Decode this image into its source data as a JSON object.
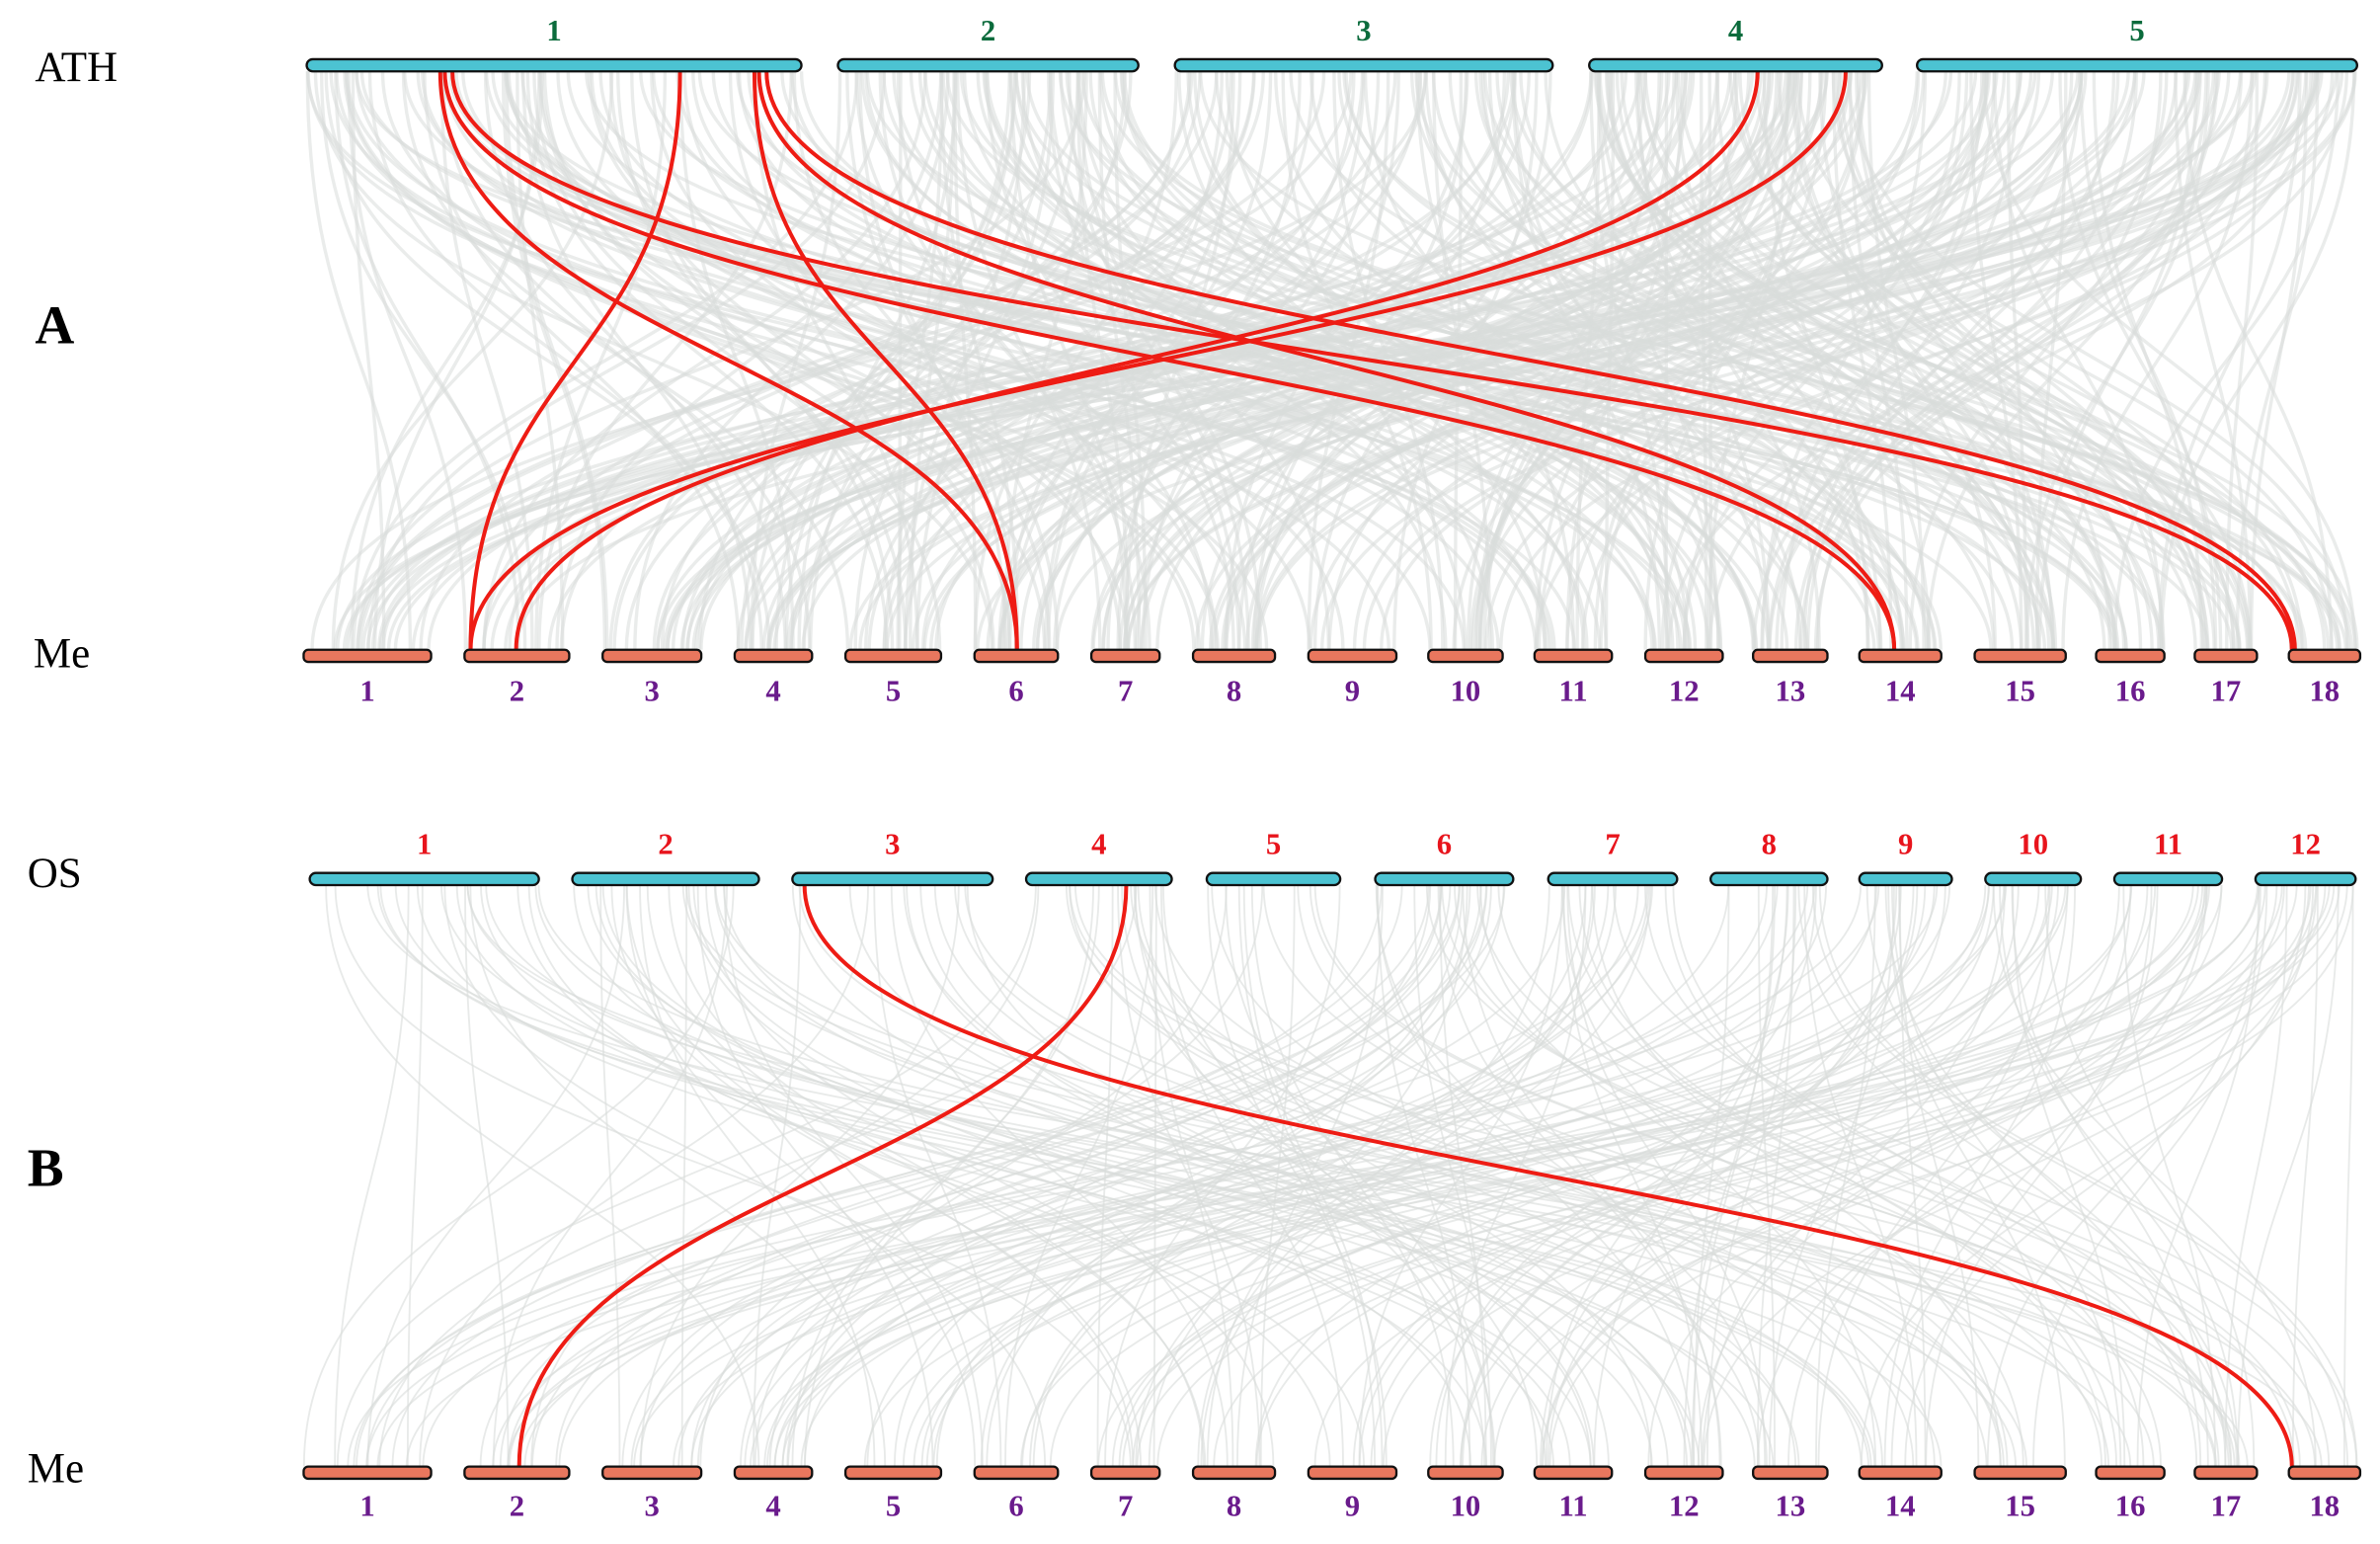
{
  "panels": [
    {
      "label": "A",
      "top": {
        "species": "ATH",
        "chromosomes": [
          "1",
          "2",
          "3",
          "4",
          "5"
        ]
      },
      "bottom": {
        "species": "Me",
        "chromosomes": [
          "1",
          "2",
          "3",
          "4",
          "5",
          "6",
          "7",
          "8",
          "9",
          "10",
          "11",
          "12",
          "13",
          "14",
          "15",
          "16",
          "17",
          "18"
        ]
      }
    },
    {
      "label": "B",
      "top": {
        "species": "OS",
        "chromosomes": [
          "1",
          "2",
          "3",
          "4",
          "5",
          "6",
          "7",
          "8",
          "9",
          "10",
          "11",
          "12"
        ]
      },
      "bottom": {
        "species": "Me",
        "chromosomes": [
          "1",
          "2",
          "3",
          "4",
          "5",
          "6",
          "7",
          "8",
          "9",
          "10",
          "11",
          "12",
          "13",
          "14",
          "15",
          "16",
          "17",
          "18"
        ]
      }
    }
  ]
}
